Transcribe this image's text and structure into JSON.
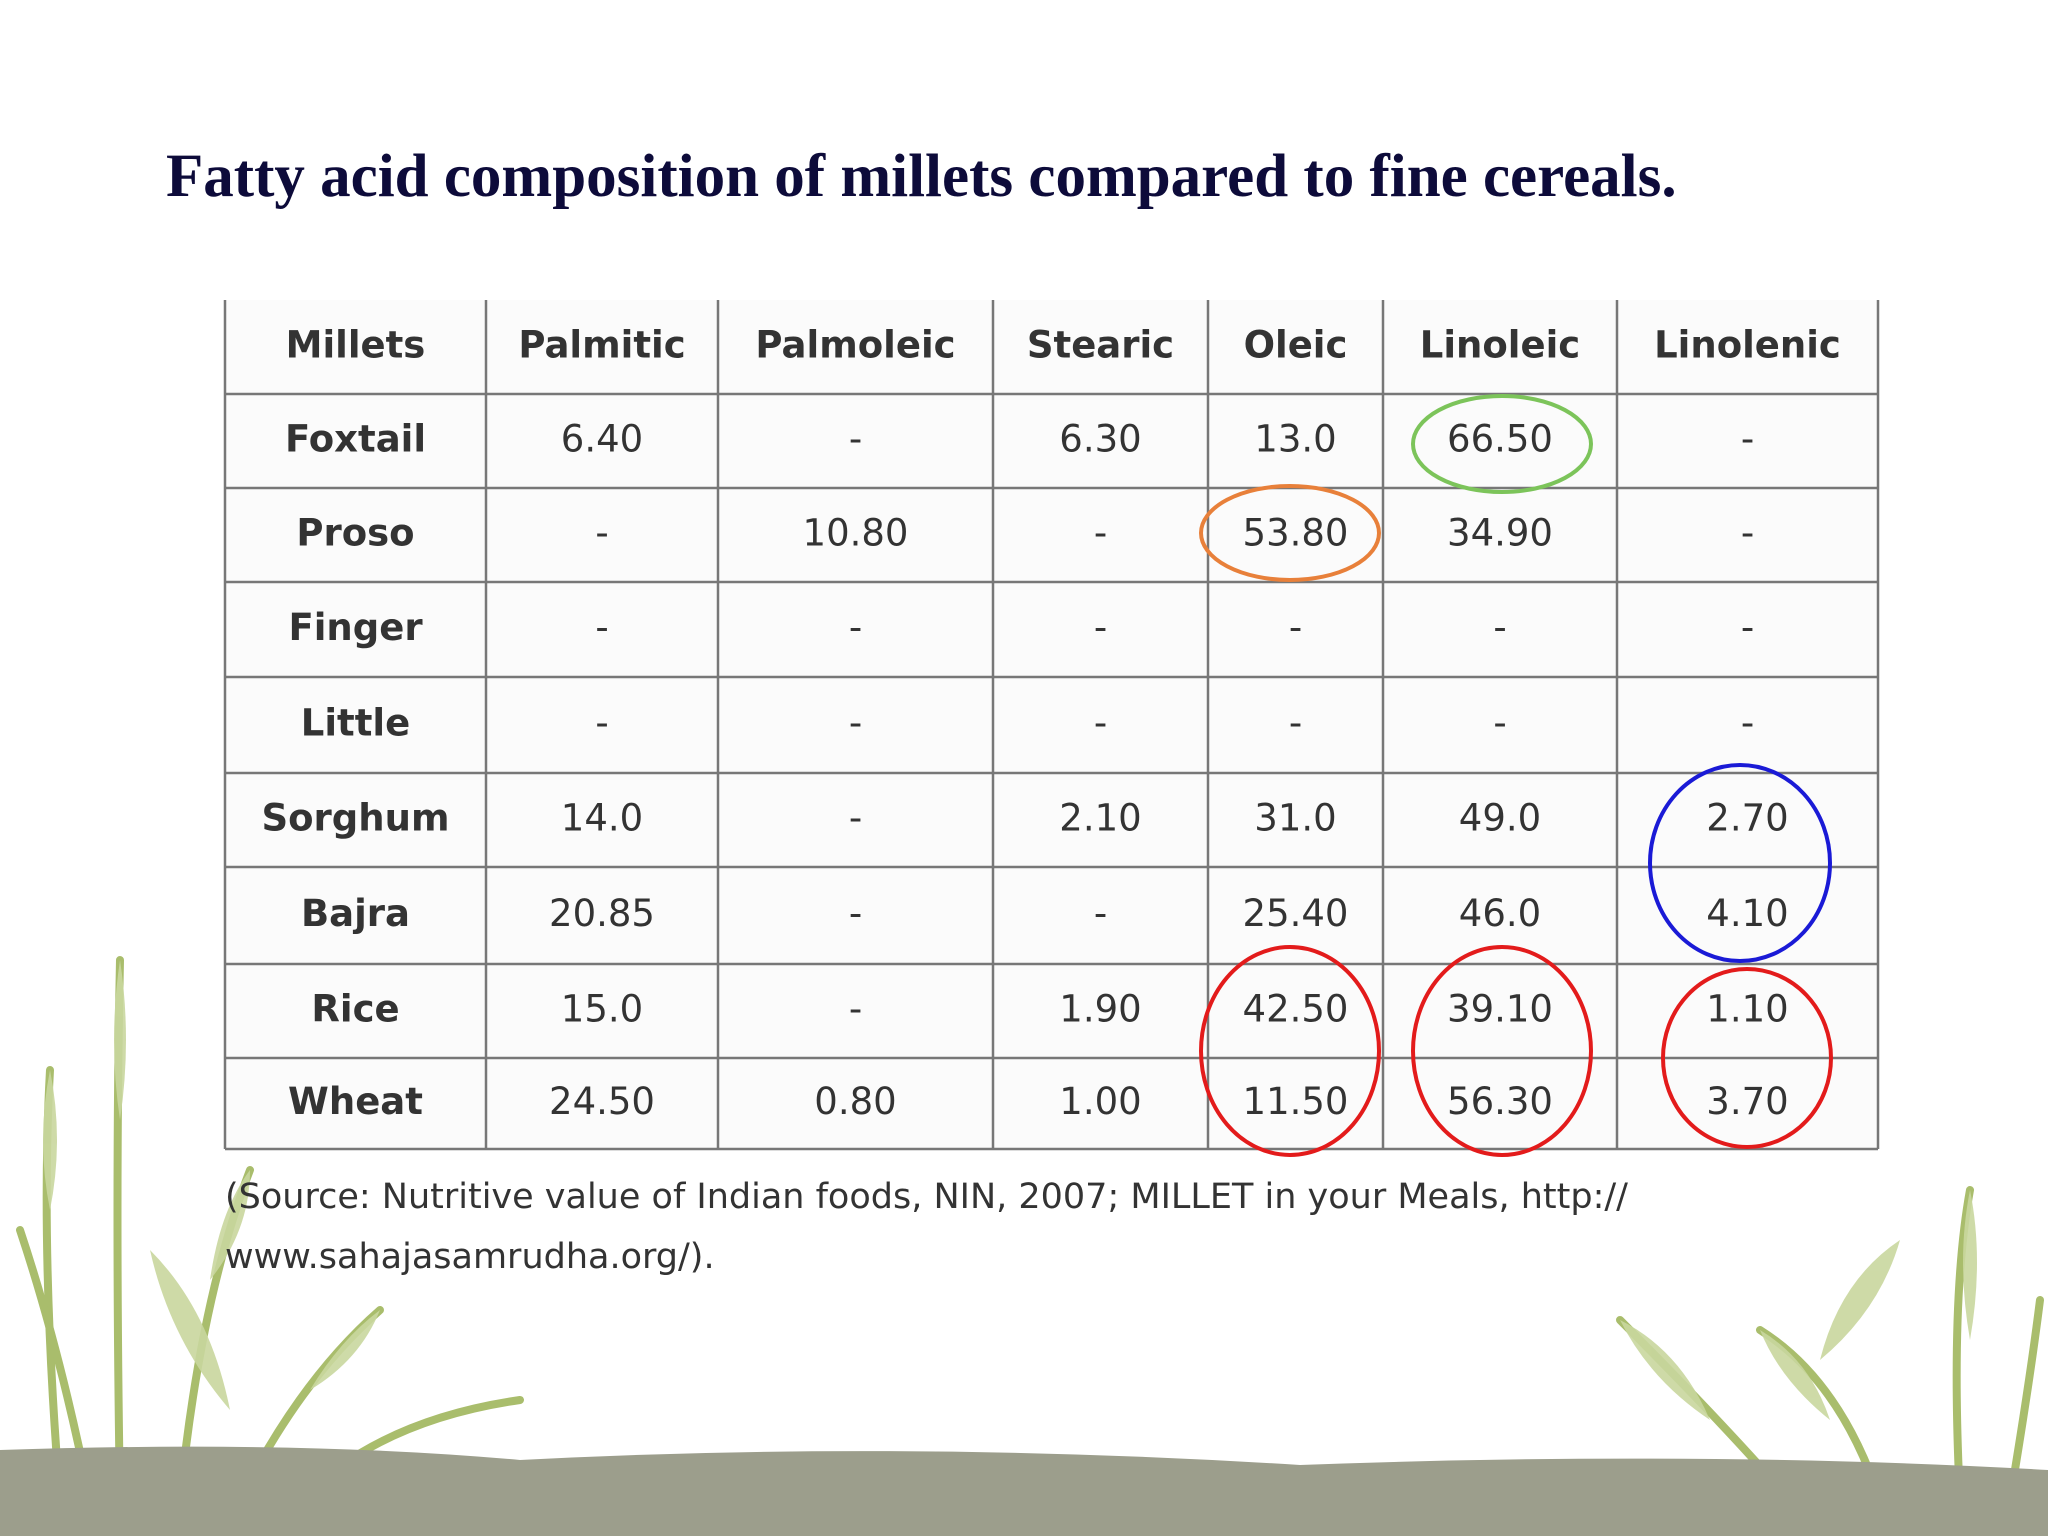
{
  "title": "Fatty acid composition of millets compared to fine cereals.",
  "table": {
    "header": [
      "Millets",
      "Palmitic",
      "Palmoleic",
      "Stearic",
      "Oleic",
      "Linoleic",
      "Linolenic"
    ],
    "rows": [
      [
        "Foxtail",
        "6.40",
        "-",
        "6.30",
        "13.0",
        "66.50",
        "-"
      ],
      [
        "Proso",
        "-",
        "10.80",
        "-",
        "53.80",
        "34.90",
        "-"
      ],
      [
        "Finger",
        "-",
        "-",
        "-",
        "-",
        "-",
        "-"
      ],
      [
        "Little",
        "-",
        "-",
        "-",
        "-",
        "-",
        "-"
      ],
      [
        "Sorghum",
        "14.0",
        "-",
        "2.10",
        "31.0",
        "49.0",
        "2.70"
      ],
      [
        "Bajra",
        "20.85",
        "-",
        "-",
        "25.40",
        "46.0",
        "4.10"
      ],
      [
        "Rice",
        "15.0",
        "-",
        "1.90",
        "42.50",
        "39.10",
        "1.10"
      ],
      [
        "Wheat",
        "24.50",
        "0.80",
        "1.00",
        "11.50",
        "56.30",
        "3.70"
      ]
    ]
  },
  "source": [
    "(Source: Nutritive value of Indian foods, NIN, 2007; MILLET in your Meals, http://",
    "www.sahajasamrudha.org/)."
  ]
}
